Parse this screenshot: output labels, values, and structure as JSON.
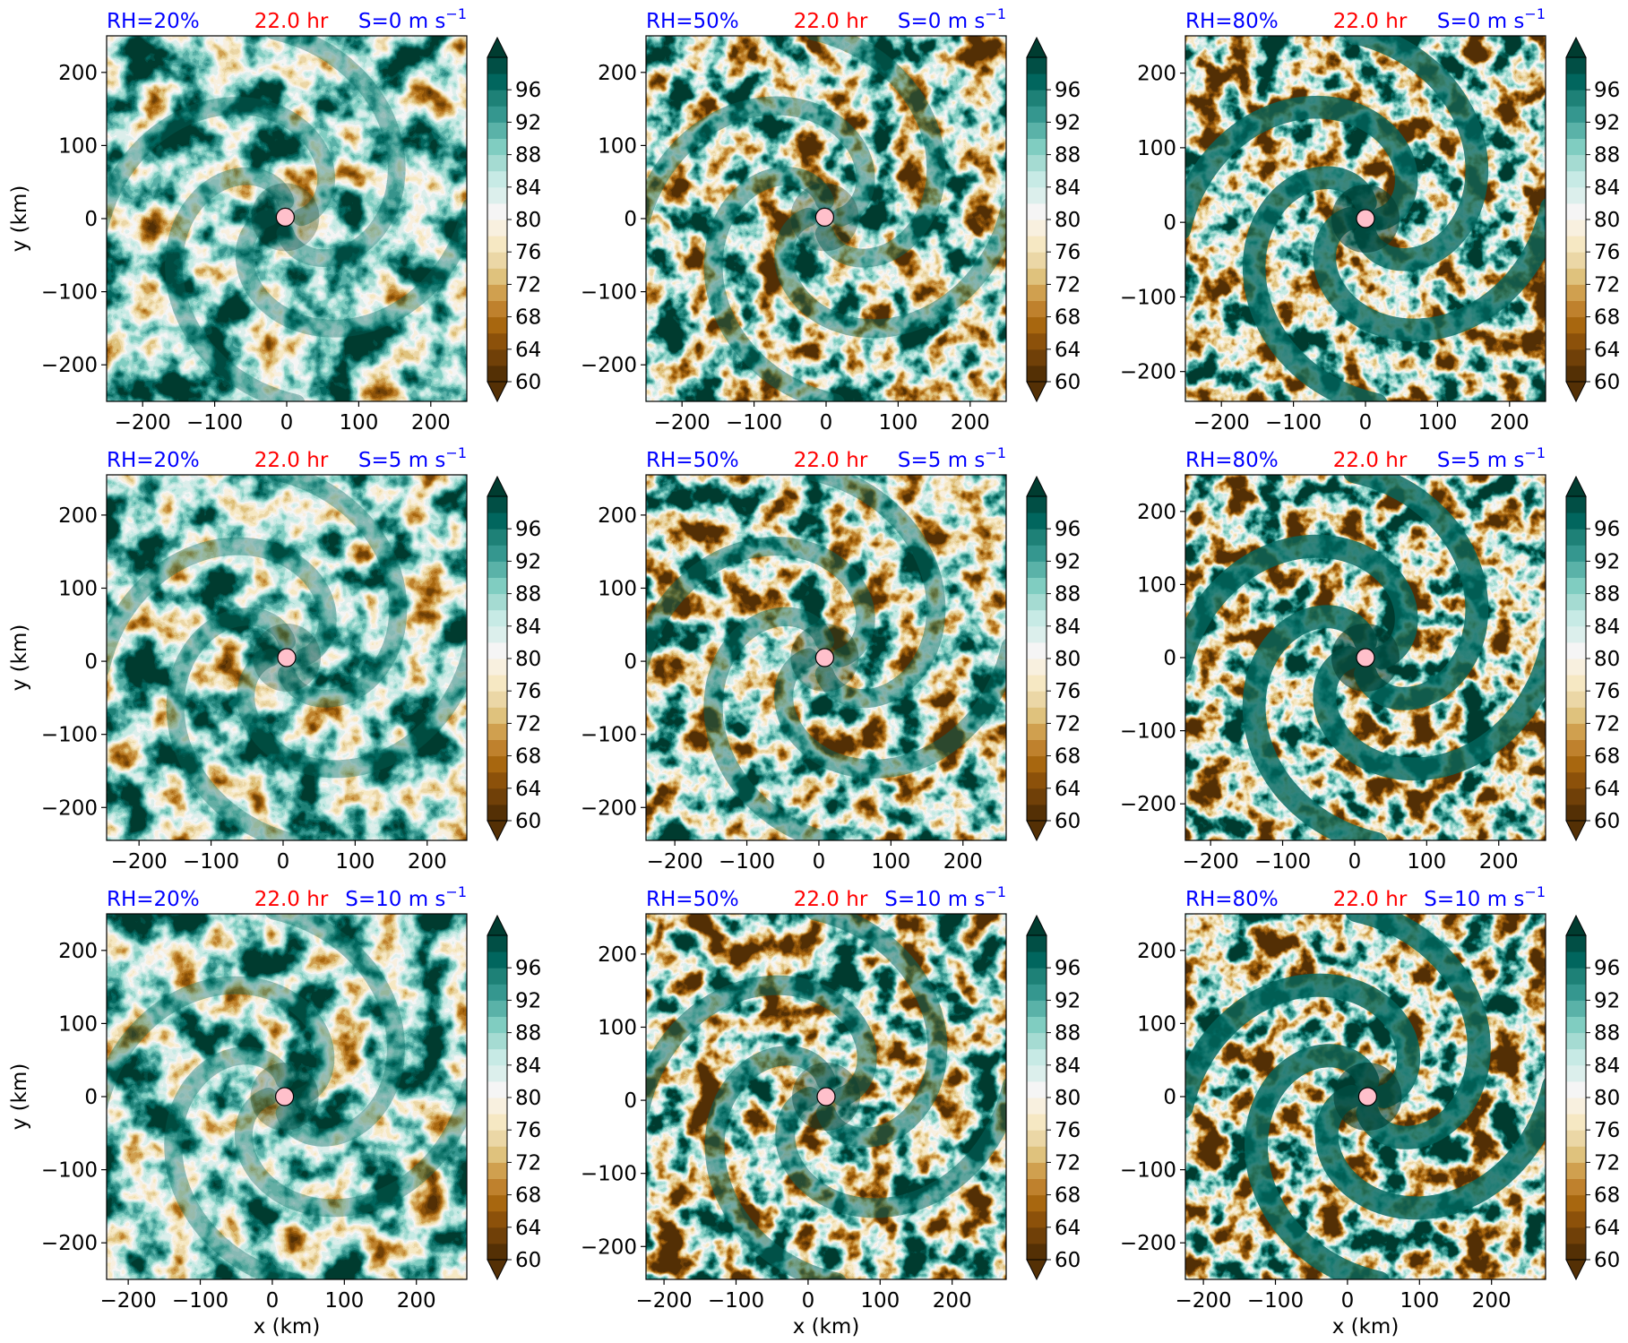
{
  "figure": {
    "rows": 3,
    "cols": 3,
    "colorbar": {
      "ticks": [
        60,
        64,
        68,
        72,
        76,
        80,
        84,
        88,
        92,
        96
      ],
      "levels": [
        60,
        62,
        64,
        66,
        68,
        70,
        72,
        74,
        76,
        78,
        80,
        82,
        84,
        86,
        88,
        90,
        92,
        94,
        96,
        98,
        100
      ],
      "extend": "both",
      "colormap": "BrBG",
      "colors": [
        "#543005",
        "#704008",
        "#8c510a",
        "#a8670f",
        "#bf812d",
        "#d0a04f",
        "#dfc27d",
        "#ebd7a6",
        "#f6e8c3",
        "#f8f0df",
        "#f5f5f5",
        "#dcefec",
        "#c7eae5",
        "#a5dbd2",
        "#80cdc1",
        "#5ab2a8",
        "#35978f",
        "#1e8177",
        "#01665e",
        "#014f45",
        "#003c30"
      ],
      "extend_low_color": "#543005",
      "extend_high_color": "#003c30"
    },
    "center_marker_color": "#ffc0cb",
    "label_colors": {
      "rh": "#0000ff",
      "time": "#ff0000",
      "shear": "#0000ff"
    }
  },
  "chart_data": [
    {
      "type": "heatmap",
      "title_left": "RH=20%",
      "title_center": "22.0 hr",
      "title_right_prefix": "S=0 m s",
      "title_right_sup": "−1",
      "xlabel": "",
      "ylabel": "y (km)",
      "xlim": [
        -250,
        250
      ],
      "ylim": [
        -250,
        250
      ],
      "xticks": [
        -200,
        -100,
        0,
        100,
        200
      ],
      "xtick_labels": [
        "−200",
        "−100",
        "0",
        "100",
        "200"
      ],
      "yticks": [
        -200,
        -100,
        0,
        100,
        200
      ],
      "ytick_labels": [
        "−200",
        "−100",
        "0",
        "100",
        "200"
      ],
      "center": [
        -2,
        2
      ],
      "mean_rh": 92,
      "dryness": 0.18,
      "variability": 10
    },
    {
      "type": "heatmap",
      "title_left": "RH=50%",
      "title_center": "22.0 hr",
      "title_right_prefix": "S=0 m s",
      "title_right_sup": "−1",
      "xlabel": "",
      "ylabel": "",
      "xlim": [
        -250,
        250
      ],
      "ylim": [
        -250,
        250
      ],
      "xticks": [
        -200,
        -100,
        0,
        100,
        200
      ],
      "xtick_labels": [
        "−200",
        "−100",
        "0",
        "100",
        "200"
      ],
      "yticks": [
        -200,
        -100,
        0,
        100,
        200
      ],
      "ytick_labels": [
        "−200",
        "−100",
        "0",
        "100",
        "200"
      ],
      "center": [
        -2,
        2
      ],
      "mean_rh": 90,
      "dryness": 0.3,
      "variability": 14
    },
    {
      "type": "heatmap",
      "title_left": "RH=80%",
      "title_center": "22.0 hr",
      "title_right_prefix": "S=0 m s",
      "title_right_sup": "−1",
      "xlabel": "",
      "ylabel": "",
      "xlim": [
        -250,
        250
      ],
      "ylim": [
        -240,
        250
      ],
      "xticks": [
        -200,
        -100,
        0,
        100,
        200
      ],
      "xtick_labels": [
        "−200",
        "−100",
        "0",
        "100",
        "200"
      ],
      "yticks": [
        -200,
        -100,
        0,
        100,
        200
      ],
      "ytick_labels": [
        "−200",
        "−100",
        "0",
        "100",
        "200"
      ],
      "center": [
        0,
        5
      ],
      "mean_rh": 76,
      "dryness": 0.75,
      "variability": 18
    },
    {
      "type": "heatmap",
      "title_left": "RH=20%",
      "title_center": "22.0 hr",
      "title_right_prefix": "S=5 m s",
      "title_right_sup": "−1",
      "xlabel": "",
      "ylabel": "y (km)",
      "xlim": [
        -245,
        255
      ],
      "ylim": [
        -245,
        255
      ],
      "xticks": [
        -200,
        -100,
        0,
        100,
        200
      ],
      "xtick_labels": [
        "−200",
        "−100",
        "0",
        "100",
        "200"
      ],
      "yticks": [
        -200,
        -100,
        0,
        100,
        200
      ],
      "ytick_labels": [
        "−200",
        "−100",
        "0",
        "100",
        "200"
      ],
      "center": [
        5,
        5
      ],
      "mean_rh": 91,
      "dryness": 0.2,
      "variability": 10
    },
    {
      "type": "heatmap",
      "title_left": "RH=50%",
      "title_center": "22.0 hr",
      "title_right_prefix": "S=5 m s",
      "title_right_sup": "−1",
      "xlabel": "",
      "ylabel": "",
      "xlim": [
        -240,
        260
      ],
      "ylim": [
        -245,
        255
      ],
      "xticks": [
        -200,
        -100,
        0,
        100,
        200
      ],
      "xtick_labels": [
        "−200",
        "−100",
        "0",
        "100",
        "200"
      ],
      "yticks": [
        -200,
        -100,
        0,
        100,
        200
      ],
      "ytick_labels": [
        "−200",
        "−100",
        "0",
        "100",
        "200"
      ],
      "center": [
        8,
        5
      ],
      "mean_rh": 90,
      "dryness": 0.32,
      "variability": 14
    },
    {
      "type": "heatmap",
      "title_left": "RH=80%",
      "title_center": "22.0 hr",
      "title_right_prefix": "S=5 m s",
      "title_right_sup": "−1",
      "xlabel": "",
      "ylabel": "",
      "xlim": [
        -235,
        265
      ],
      "ylim": [
        -250,
        250
      ],
      "xticks": [
        -200,
        -100,
        0,
        100,
        200
      ],
      "xtick_labels": [
        "−200",
        "−100",
        "0",
        "100",
        "200"
      ],
      "yticks": [
        -200,
        -100,
        0,
        100,
        200
      ],
      "ytick_labels": [
        "−200",
        "−100",
        "0",
        "100",
        "200"
      ],
      "center": [
        15,
        0
      ],
      "mean_rh": 75,
      "dryness": 0.78,
      "variability": 18
    },
    {
      "type": "heatmap",
      "title_left": "RH=20%",
      "title_center": "22.0 hr",
      "title_right_prefix": "S=10 m s",
      "title_right_sup": "−1",
      "xlabel": "x (km)",
      "ylabel": "y (km)",
      "xlim": [
        -230,
        270
      ],
      "ylim": [
        -250,
        250
      ],
      "xticks": [
        -200,
        -100,
        0,
        100,
        200
      ],
      "xtick_labels": [
        "−200",
        "−100",
        "0",
        "100",
        "200"
      ],
      "yticks": [
        -200,
        -100,
        0,
        100,
        200
      ],
      "ytick_labels": [
        "−200",
        "−100",
        "0",
        "100",
        "200"
      ],
      "center": [
        17,
        0
      ],
      "mean_rh": 91,
      "dryness": 0.2,
      "variability": 10
    },
    {
      "type": "heatmap",
      "title_left": "RH=50%",
      "title_center": "22.0 hr",
      "title_right_prefix": "S=10 m s",
      "title_right_sup": "−1",
      "xlabel": "x (km)",
      "ylabel": "",
      "xlim": [
        -225,
        275
      ],
      "ylim": [
        -245,
        255
      ],
      "xticks": [
        -200,
        -100,
        0,
        100,
        200
      ],
      "xtick_labels": [
        "−200",
        "−100",
        "0",
        "100",
        "200"
      ],
      "yticks": [
        -200,
        -100,
        0,
        100,
        200
      ],
      "ytick_labels": [
        "−200",
        "−100",
        "0",
        "100",
        "200"
      ],
      "center": [
        25,
        5
      ],
      "mean_rh": 88,
      "dryness": 0.4,
      "variability": 15
    },
    {
      "type": "heatmap",
      "title_left": "RH=80%",
      "title_center": "22.0 hr",
      "title_right_prefix": "S=10 m s",
      "title_right_sup": "−1",
      "xlabel": "x (km)",
      "ylabel": "",
      "xlim": [
        -225,
        275
      ],
      "ylim": [
        -250,
        250
      ],
      "xticks": [
        -200,
        -100,
        0,
        100,
        200
      ],
      "xtick_labels": [
        "−200",
        "−100",
        "0",
        "100",
        "200"
      ],
      "yticks": [
        -200,
        -100,
        0,
        100,
        200
      ],
      "ytick_labels": [
        "−200",
        "−100",
        "0",
        "100",
        "200"
      ],
      "center": [
        28,
        0
      ],
      "mean_rh": 74,
      "dryness": 0.8,
      "variability": 18
    }
  ]
}
